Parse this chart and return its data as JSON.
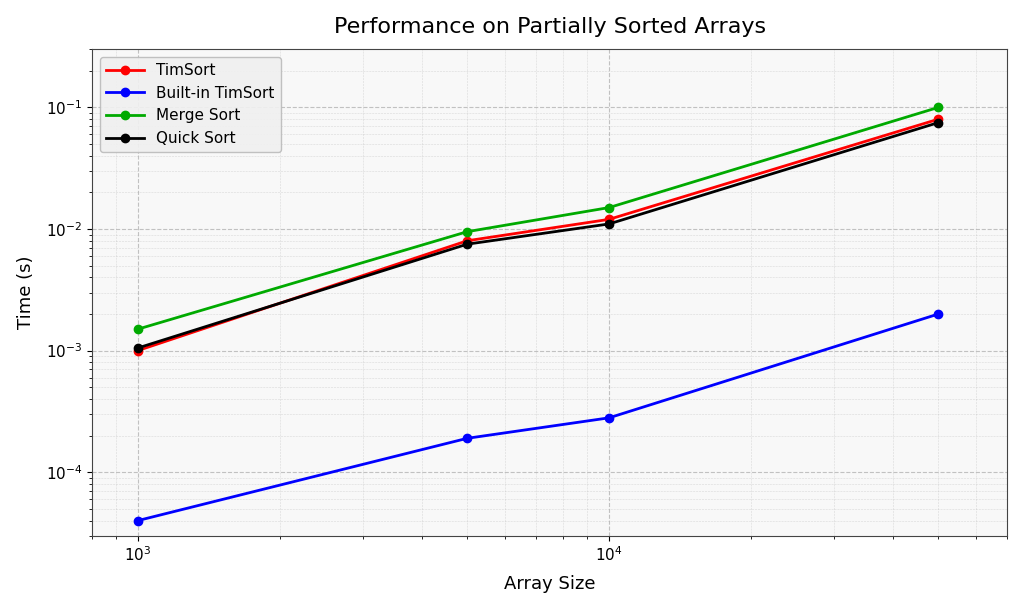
{
  "title": "Performance on Partially Sorted Arrays",
  "xlabel": "Array Size",
  "ylabel": "Time (s)",
  "x": [
    1000,
    5000,
    10000,
    50000
  ],
  "timsort": [
    0.001,
    0.008,
    0.012,
    0.08
  ],
  "builtin_timsort": [
    4e-05,
    0.00019,
    0.00028,
    0.002
  ],
  "merge_sort": [
    0.0015,
    0.0095,
    0.015,
    0.1
  ],
  "quick_sort": [
    0.00105,
    0.0075,
    0.011,
    0.075
  ],
  "timsort_color": "#ff0000",
  "builtin_timsort_color": "#0000ff",
  "merge_sort_color": "#00aa00",
  "quick_sort_color": "#000000",
  "timsort_label": "TimSort",
  "builtin_timsort_label": "Built-in TimSort",
  "merge_sort_label": "Merge Sort",
  "quick_sort_label": "Quick Sort",
  "fig_facecolor": "#ffffff",
  "ax_facecolor": "#f8f8f8",
  "title_fontsize": 16,
  "label_fontsize": 13,
  "legend_fontsize": 11,
  "tick_labelsize": 11,
  "grid_color": "#aaaaaa",
  "ylim": [
    3e-05,
    0.3
  ],
  "xlim_lo": 800,
  "xlim_hi": 70000
}
